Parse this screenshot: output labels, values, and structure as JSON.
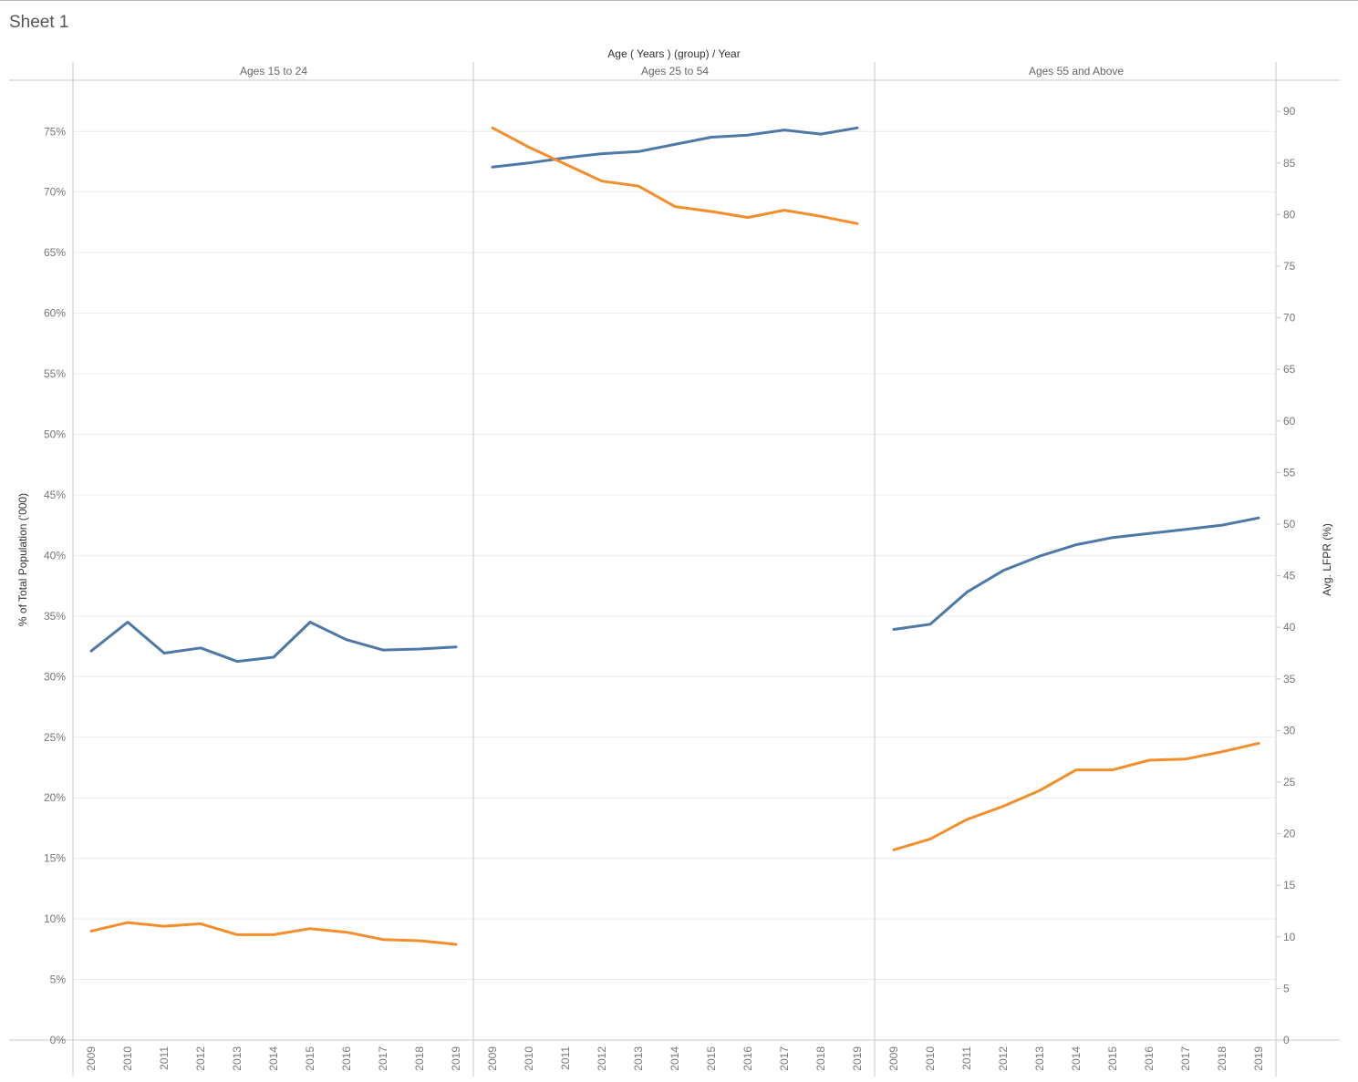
{
  "sheet": {
    "title": "Sheet 1"
  },
  "header": {
    "title": "Age ( Years ) (group)  /  Year"
  },
  "colors": {
    "lfpr": "#4e79a7",
    "population": "#f28e2b",
    "grid": "#ececec",
    "border": "#c8c8c8"
  },
  "chart_data": {
    "type": "line",
    "title": "Sheet 1",
    "xlabel": "Age ( Years ) (group) / Year",
    "ylabel": "% of Total Population ('000)",
    "y2label": "Avg. LFPR (%)",
    "ylim": [
      0,
      78
    ],
    "y2lim": [
      0,
      92
    ],
    "yticks": [
      "0%",
      "5%",
      "10%",
      "15%",
      "20%",
      "25%",
      "30%",
      "35%",
      "40%",
      "45%",
      "50%",
      "55%",
      "60%",
      "65%",
      "70%",
      "75%"
    ],
    "y2ticks": [
      "0",
      "5",
      "10",
      "15",
      "20",
      "25",
      "30",
      "35",
      "40",
      "45",
      "50",
      "55",
      "60",
      "65",
      "70",
      "75",
      "80",
      "85",
      "90"
    ],
    "grid": true,
    "categories": [
      "2009",
      "2010",
      "2011",
      "2012",
      "2013",
      "2014",
      "2015",
      "2016",
      "2017",
      "2018",
      "2019"
    ],
    "panels": [
      {
        "label": "Ages 15 to 24",
        "series": [
          {
            "name": "Avg. LFPR (%)",
            "axis": "right",
            "color": "#4e79a7",
            "values": [
              37.7,
              40.5,
              37.5,
              38.0,
              36.7,
              37.1,
              40.5,
              38.8,
              37.8,
              37.9,
              38.1
            ]
          },
          {
            "name": "% of Total Population ('000)",
            "axis": "left",
            "color": "#f28e2b",
            "values": [
              9.0,
              9.7,
              9.4,
              9.6,
              8.7,
              8.7,
              9.2,
              8.9,
              8.3,
              8.2,
              7.9
            ]
          }
        ]
      },
      {
        "label": "Ages 25 to 54",
        "series": [
          {
            "name": "Avg. LFPR (%)",
            "axis": "right",
            "color": "#4e79a7",
            "values": [
              84.6,
              85.0,
              85.5,
              85.9,
              86.1,
              86.8,
              87.5,
              87.7,
              88.2,
              87.8,
              88.4
            ]
          },
          {
            "name": "% of Total Population ('000)",
            "axis": "left",
            "color": "#f28e2b",
            "values": [
              75.3,
              73.7,
              72.3,
              70.9,
              70.5,
              68.8,
              68.4,
              67.9,
              68.5,
              68.0,
              67.4
            ]
          }
        ]
      },
      {
        "label": "Ages 55 and Above",
        "series": [
          {
            "name": "Avg. LFPR (%)",
            "axis": "right",
            "color": "#4e79a7",
            "values": [
              39.8,
              40.3,
              43.4,
              45.5,
              46.9,
              48.0,
              48.7,
              49.1,
              49.5,
              49.9,
              50.6
            ]
          },
          {
            "name": "% of Total Population ('000)",
            "axis": "left",
            "color": "#f28e2b",
            "values": [
              15.7,
              16.6,
              18.2,
              19.3,
              20.6,
              22.3,
              22.3,
              23.1,
              23.2,
              23.8,
              24.5
            ]
          }
        ]
      }
    ]
  }
}
